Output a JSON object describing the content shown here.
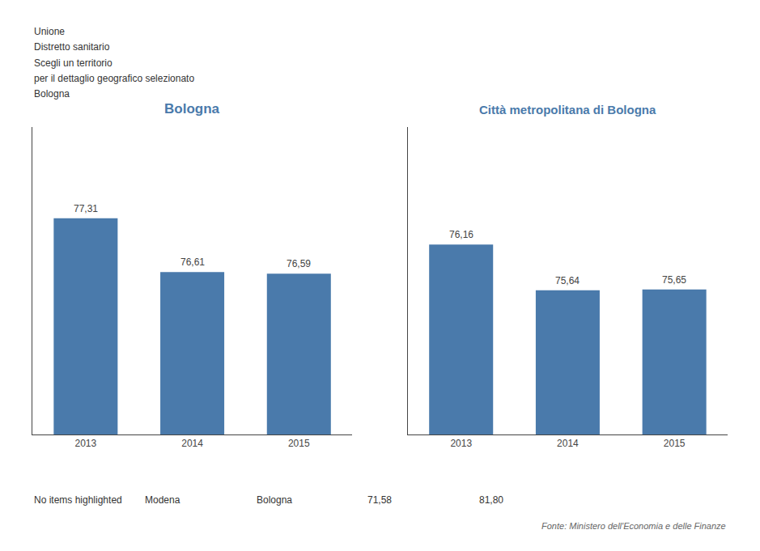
{
  "chart_data": [
    {
      "type": "bar",
      "title": "Bologna",
      "categories": [
        "2013",
        "2014",
        "2015"
      ],
      "values": [
        77.31,
        76.61,
        76.59
      ],
      "value_labels": [
        "77,31",
        "76,61",
        "76,59"
      ],
      "data_labels": true,
      "color": "#4a7aab",
      "ylim": [
        74.5,
        78.5
      ],
      "tick_labels": "x",
      "grid": false,
      "annotations": [
        "Unione",
        "Distretto sanitario",
        "Scegli un territorio",
        "per il dettaglio geografico selezionato",
        "Bologna"
      ]
    },
    {
      "type": "bar",
      "title": "Città metropolitana di Bologna",
      "categories": [
        "2013",
        "2014",
        "2015"
      ],
      "values": [
        76.16,
        75.64,
        75.65
      ],
      "value_labels": [
        "76,16",
        "75,64",
        "75,65"
      ],
      "data_labels": true,
      "color": "#4a7aab",
      "ylim": [
        74.0,
        77.5
      ],
      "tick_labels": "x",
      "grid": false,
      "annotations": [
        "No items highlighted",
        "Modena",
        "Bologna",
        "71,58",
        "81,80",
        "Fonte: Ministero dell'Economia e delle Finanze"
      ]
    }
  ]
}
